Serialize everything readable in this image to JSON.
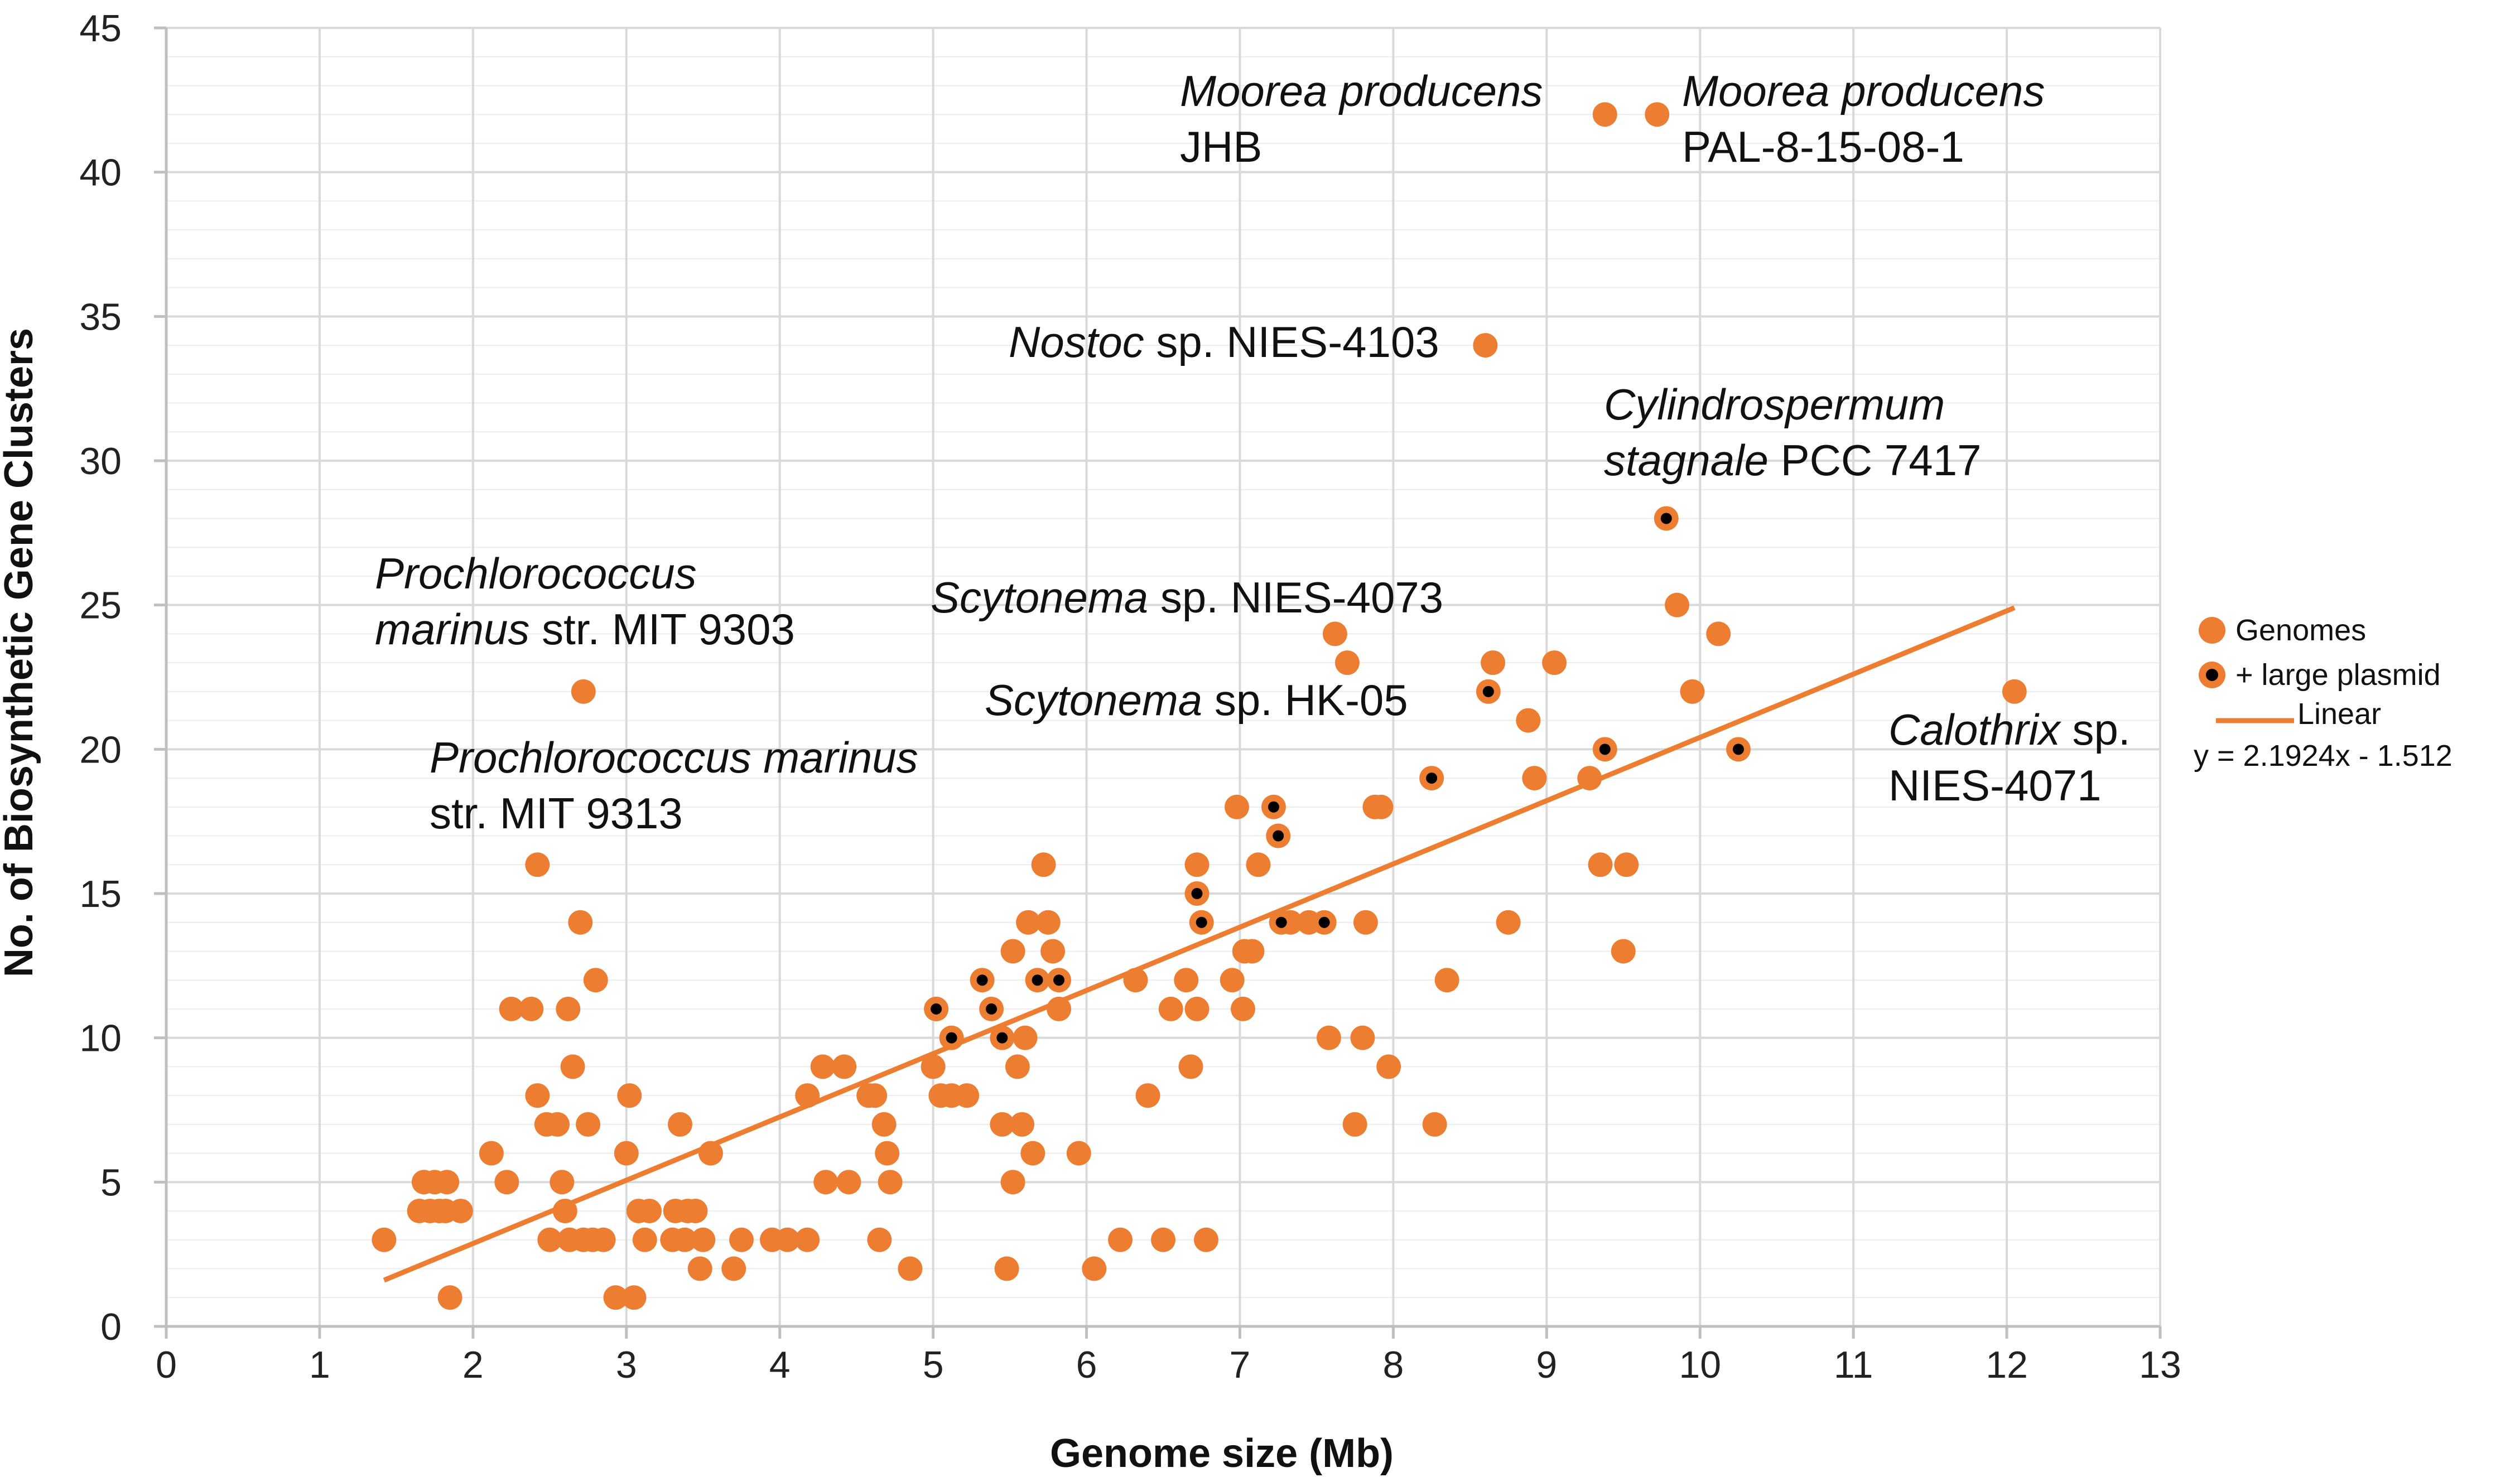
{
  "chart_data": {
    "type": "scatter",
    "xlabel": "Genome size (Mb)",
    "ylabel": "No. of Biosynthetic Gene Clusters",
    "xlim": [
      0,
      13
    ],
    "ylim": [
      0,
      45
    ],
    "x_ticks": [
      "0",
      "1",
      "2",
      "3",
      "4",
      "5",
      "6",
      "7",
      "8",
      "9",
      "10",
      "11",
      "12",
      "13"
    ],
    "y_ticks": [
      "0",
      "5",
      "10",
      "15",
      "20",
      "25",
      "30",
      "35",
      "40",
      "45"
    ],
    "grid": true,
    "legend_position": "right",
    "colors": {
      "genome": "#ED7D31",
      "plasmid_dot": "#000000",
      "trend": "#ED7D31",
      "grid": "#d9d9d9",
      "axis": "#bfbfbf"
    },
    "series": [
      {
        "name": "Genomes",
        "points": [
          [
            1.42,
            3
          ],
          [
            1.65,
            4
          ],
          [
            1.68,
            5
          ],
          [
            1.72,
            4
          ],
          [
            1.75,
            5
          ],
          [
            1.78,
            4
          ],
          [
            1.82,
            4
          ],
          [
            1.83,
            5
          ],
          [
            1.85,
            1
          ],
          [
            1.92,
            4
          ],
          [
            2.12,
            6
          ],
          [
            2.22,
            5
          ],
          [
            2.25,
            11
          ],
          [
            2.38,
            11
          ],
          [
            2.42,
            8
          ],
          [
            2.48,
            7
          ],
          [
            2.5,
            3
          ],
          [
            2.55,
            7
          ],
          [
            2.58,
            5
          ],
          [
            2.6,
            4
          ],
          [
            2.62,
            11
          ],
          [
            2.63,
            3
          ],
          [
            2.65,
            9
          ],
          [
            2.72,
            3
          ],
          [
            2.75,
            7
          ],
          [
            2.78,
            3
          ],
          [
            2.8,
            12
          ],
          [
            2.85,
            3
          ],
          [
            2.93,
            1
          ],
          [
            3.0,
            6
          ],
          [
            3.02,
            8
          ],
          [
            3.05,
            1
          ],
          [
            3.08,
            4
          ],
          [
            3.12,
            3
          ],
          [
            3.15,
            4
          ],
          [
            3.3,
            3
          ],
          [
            3.32,
            4
          ],
          [
            3.35,
            7
          ],
          [
            3.38,
            3
          ],
          [
            3.4,
            4
          ],
          [
            3.45,
            4
          ],
          [
            3.48,
            2
          ],
          [
            3.5,
            3
          ],
          [
            3.55,
            6
          ],
          [
            3.7,
            2
          ],
          [
            3.75,
            3
          ],
          [
            3.95,
            3
          ],
          [
            4.05,
            3
          ],
          [
            4.18,
            3
          ],
          [
            4.18,
            8
          ],
          [
            4.28,
            9
          ],
          [
            4.3,
            5
          ],
          [
            4.42,
            9
          ],
          [
            4.45,
            5
          ],
          [
            4.58,
            8
          ],
          [
            4.62,
            8
          ],
          [
            4.65,
            3
          ],
          [
            4.68,
            7
          ],
          [
            4.7,
            6
          ],
          [
            4.72,
            5
          ],
          [
            4.85,
            2
          ],
          [
            5.0,
            9
          ],
          [
            5.02,
            11
          ],
          [
            5.05,
            8
          ],
          [
            5.12,
            8
          ],
          [
            5.22,
            8
          ],
          [
            5.45,
            7
          ],
          [
            5.48,
            2
          ],
          [
            5.52,
            5
          ],
          [
            5.52,
            13
          ],
          [
            5.55,
            9
          ],
          [
            5.58,
            7
          ],
          [
            5.6,
            10
          ],
          [
            5.62,
            14
          ],
          [
            5.65,
            6
          ],
          [
            5.72,
            16
          ],
          [
            5.75,
            14
          ],
          [
            5.78,
            13
          ],
          [
            5.82,
            11
          ],
          [
            5.95,
            6
          ],
          [
            6.05,
            2
          ],
          [
            6.22,
            3
          ],
          [
            6.32,
            12
          ],
          [
            6.4,
            8
          ],
          [
            6.5,
            3
          ],
          [
            6.55,
            11
          ],
          [
            6.65,
            12
          ],
          [
            6.68,
            9
          ],
          [
            6.72,
            11
          ],
          [
            6.72,
            16
          ],
          [
            6.78,
            3
          ],
          [
            6.95,
            12
          ],
          [
            6.98,
            18
          ],
          [
            7.02,
            11
          ],
          [
            7.03,
            13
          ],
          [
            7.08,
            13
          ],
          [
            7.12,
            16
          ],
          [
            7.33,
            14
          ],
          [
            7.45,
            14
          ],
          [
            7.58,
            10
          ],
          [
            7.62,
            24
          ],
          [
            7.7,
            23
          ],
          [
            7.75,
            7
          ],
          [
            7.8,
            10
          ],
          [
            7.82,
            14
          ],
          [
            7.88,
            18
          ],
          [
            7.92,
            18
          ],
          [
            7.97,
            9
          ],
          [
            8.27,
            7
          ],
          [
            8.35,
            12
          ],
          [
            8.6,
            34
          ],
          [
            8.65,
            23
          ],
          [
            8.75,
            14
          ],
          [
            8.88,
            21
          ],
          [
            8.92,
            19
          ],
          [
            9.05,
            23
          ],
          [
            9.28,
            19
          ],
          [
            9.35,
            16
          ],
          [
            9.38,
            42
          ],
          [
            9.5,
            13
          ],
          [
            9.52,
            16
          ],
          [
            9.72,
            42
          ],
          [
            9.85,
            25
          ],
          [
            9.95,
            22
          ],
          [
            10.12,
            24
          ],
          [
            12.05,
            22
          ],
          [
            2.42,
            16
          ],
          [
            2.7,
            14
          ],
          [
            2.72,
            22
          ]
        ]
      },
      {
        "name": "+ large plasmid",
        "points": [
          [
            5.02,
            11
          ],
          [
            5.12,
            10
          ],
          [
            5.32,
            12
          ],
          [
            5.38,
            11
          ],
          [
            5.45,
            10
          ],
          [
            5.68,
            12
          ],
          [
            5.82,
            12
          ],
          [
            6.72,
            15
          ],
          [
            6.75,
            14
          ],
          [
            7.22,
            18
          ],
          [
            7.25,
            17
          ],
          [
            7.27,
            14
          ],
          [
            7.55,
            14
          ],
          [
            8.25,
            19
          ],
          [
            8.62,
            22
          ],
          [
            9.38,
            20
          ],
          [
            9.78,
            28
          ],
          [
            10.25,
            20
          ]
        ]
      },
      {
        "name": "Linear",
        "equation": "y = 2.1924x - 1.512",
        "slope": 2.1924,
        "intercept": -1.512,
        "x_range": [
          1.42,
          12.05
        ]
      }
    ],
    "annotations": [
      {
        "id": "moorea-jhb",
        "x": 9.38,
        "y": 42,
        "lines": [
          [
            {
              "t": "Moorea producens",
              "i": true
            }
          ],
          [
            {
              "t": "JHB",
              "i": false
            }
          ]
        ]
      },
      {
        "id": "moorea-pal",
        "x": 9.72,
        "y": 42,
        "lines": [
          [
            {
              "t": "Moorea producens",
              "i": true
            }
          ],
          [
            {
              "t": "PAL-8-15-08-1",
              "i": false
            }
          ]
        ]
      },
      {
        "id": "nostoc",
        "x": 8.6,
        "y": 34,
        "lines": [
          [
            {
              "t": "Nostoc",
              "i": true
            },
            {
              "t": " sp. NIES-4103",
              "i": false
            }
          ]
        ]
      },
      {
        "id": "cylindrospermum",
        "x": 9.78,
        "y": 28,
        "lines": [
          [
            {
              "t": "Cylindrospermum",
              "i": true
            }
          ],
          [
            {
              "t": "stagnale",
              "i": true
            },
            {
              "t": " PCC 7417",
              "i": false
            }
          ]
        ]
      },
      {
        "id": "prochloro-9303",
        "x": 2.72,
        "y": 22,
        "lines": [
          [
            {
              "t": "Prochlorococcus",
              "i": true
            }
          ],
          [
            {
              "t": "marinus",
              "i": true
            },
            {
              "t": " str. MIT 9303",
              "i": false
            }
          ]
        ]
      },
      {
        "id": "scytonema-4073",
        "x": 7.62,
        "y": 24,
        "lines": [
          [
            {
              "t": "Scytonema",
              "i": true
            },
            {
              "t": " sp. NIES-4073",
              "i": false
            }
          ]
        ]
      },
      {
        "id": "scytonema-hk05",
        "x": 8.62,
        "y": 22,
        "lines": [
          [
            {
              "t": "Scytonema",
              "i": true
            },
            {
              "t": " sp. HK-05",
              "i": false
            }
          ]
        ]
      },
      {
        "id": "prochloro-9313",
        "x": 2.42,
        "y": 16,
        "lines": [
          [
            {
              "t": "Prochlorococcus marinus",
              "i": true
            }
          ],
          [
            {
              "t": "str. MIT 9313",
              "i": false
            }
          ]
        ]
      },
      {
        "id": "calothrix",
        "x": 12.05,
        "y": 22,
        "lines": [
          [
            {
              "t": "Calothrix",
              "i": true
            },
            {
              "t": " sp.",
              "i": false
            }
          ],
          [
            {
              "t": "NIES-4071",
              "i": false
            }
          ]
        ]
      }
    ],
    "legend": [
      {
        "label": "Genomes",
        "kind": "dot"
      },
      {
        "label": "+ large plasmid",
        "kind": "plasmid"
      },
      {
        "label": "Linear",
        "kind": "line"
      },
      {
        "label": "y = 2.1924x - 1.512",
        "kind": "equation"
      }
    ]
  }
}
